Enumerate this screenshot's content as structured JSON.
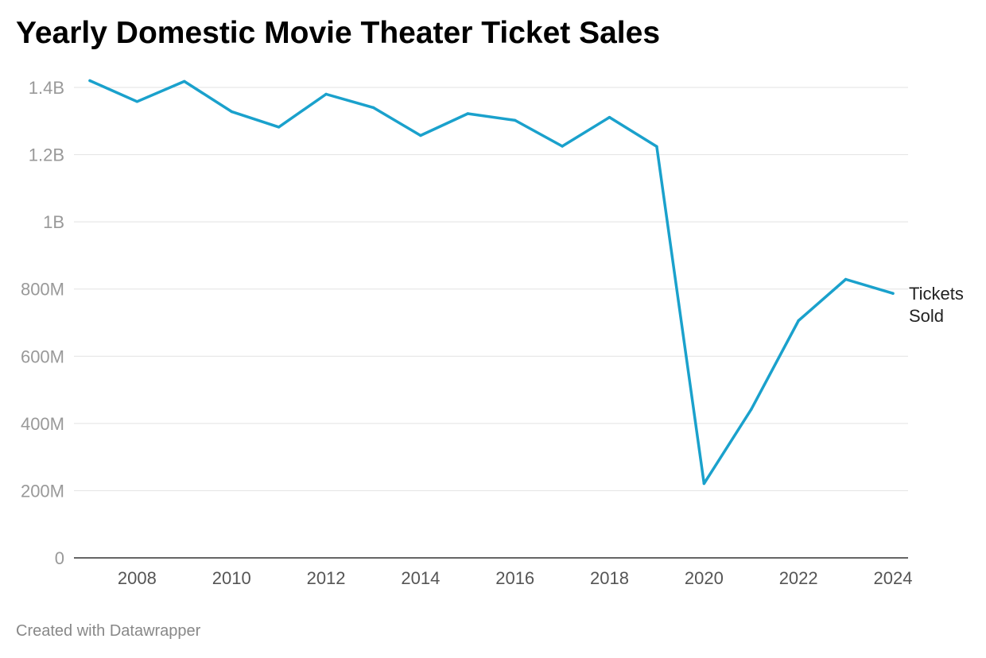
{
  "title": "Yearly Domestic Movie Theater Ticket Sales",
  "footer": "Created with Datawrapper",
  "colors": {
    "line": "#1aa1cc",
    "grid": "#e2e2e2",
    "baseline": "#333333"
  },
  "chart_data": {
    "type": "line",
    "title": "Yearly Domestic Movie Theater Ticket Sales",
    "xlabel": "",
    "ylabel": "",
    "grid": true,
    "legend": "inline label at line end",
    "ylim": [
      0,
      1400000000
    ],
    "xlim": [
      2007,
      2024
    ],
    "yticks": [
      {
        "value": 0,
        "label": "0"
      },
      {
        "value": 200000000,
        "label": "200M"
      },
      {
        "value": 400000000,
        "label": "400M"
      },
      {
        "value": 600000000,
        "label": "600M"
      },
      {
        "value": 800000000,
        "label": "800M"
      },
      {
        "value": 1000000000,
        "label": "1B"
      },
      {
        "value": 1200000000,
        "label": "1.2B"
      },
      {
        "value": 1400000000,
        "label": "1.4B"
      }
    ],
    "xticks": [
      {
        "value": 2008,
        "label": "2008"
      },
      {
        "value": 2010,
        "label": "2010"
      },
      {
        "value": 2012,
        "label": "2012"
      },
      {
        "value": 2014,
        "label": "2014"
      },
      {
        "value": 2016,
        "label": "2016"
      },
      {
        "value": 2018,
        "label": "2018"
      },
      {
        "value": 2020,
        "label": "2020"
      },
      {
        "value": 2022,
        "label": "2022"
      },
      {
        "value": 2024,
        "label": "2024"
      }
    ],
    "x": [
      2007,
      2008,
      2009,
      2010,
      2011,
      2012,
      2013,
      2014,
      2015,
      2016,
      2017,
      2018,
      2019,
      2020,
      2021,
      2022,
      2023,
      2024
    ],
    "series": [
      {
        "name": "Tickets Sold",
        "name_lines": [
          "Tickets",
          "Sold"
        ],
        "values": [
          1420000000,
          1358000000,
          1418000000,
          1328000000,
          1282000000,
          1380000000,
          1340000000,
          1257000000,
          1322000000,
          1302000000,
          1225000000,
          1311000000,
          1224000000,
          221000000,
          442000000,
          706000000,
          829000000,
          787000000
        ]
      }
    ]
  }
}
